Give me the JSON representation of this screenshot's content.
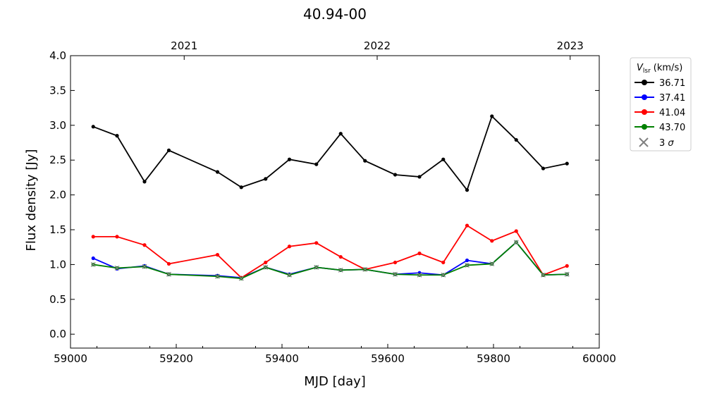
{
  "chart_data": {
    "type": "line",
    "title": "40.94-00",
    "xlabel": "MJD [day]",
    "ylabel": "Flux density [Jy]",
    "xlim": [
      59000,
      60000
    ],
    "ylim": [
      -0.2,
      4.0
    ],
    "xticks": [
      "59000",
      "59200",
      "59400",
      "59600",
      "59800",
      "60000"
    ],
    "yticks": [
      "0.0",
      "0.5",
      "1.0",
      "1.5",
      "2.0",
      "2.5",
      "3.0",
      "3.5",
      "4.0"
    ],
    "top_axis_years": [
      {
        "label": "2021",
        "mjd": 59215
      },
      {
        "label": "2022",
        "mjd": 59580
      },
      {
        "label": "2023",
        "mjd": 59945
      }
    ],
    "legend_title_main": "V",
    "legend_title_sub": "lsr",
    "legend_title_unit": "(km/s)",
    "legend_placement": "outside-top-right",
    "sigma_label_num": "3",
    "sigma_label_sym": "σ",
    "x": [
      59043,
      59088,
      59140,
      59186,
      59278,
      59323,
      59369,
      59414,
      59465,
      59511,
      59557,
      59614,
      59660,
      59705,
      59750,
      59797,
      59843,
      59894,
      59939
    ],
    "series": [
      {
        "name": "36.71",
        "color": "#000000",
        "values": [
          2.98,
          2.85,
          2.19,
          2.64,
          2.33,
          2.11,
          2.23,
          2.51,
          2.44,
          2.88,
          2.49,
          2.29,
          2.26,
          2.51,
          2.07,
          3.13,
          2.79,
          2.38,
          2.45
        ]
      },
      {
        "name": "37.41",
        "color": "#0000ff",
        "values": [
          1.09,
          0.94,
          0.98,
          0.86,
          0.84,
          0.81,
          0.96,
          0.86,
          0.96,
          0.92,
          0.93,
          0.86,
          0.88,
          0.85,
          1.06,
          1.01,
          1.32,
          0.85,
          0.86
        ]
      },
      {
        "name": "41.04",
        "color": "#ff0000",
        "values": [
          1.4,
          1.4,
          1.28,
          1.01,
          1.14,
          0.81,
          1.03,
          1.26,
          1.31,
          1.11,
          0.93,
          1.03,
          1.16,
          1.03,
          1.56,
          1.34,
          1.48,
          0.85,
          0.98
        ]
      },
      {
        "name": "43.70",
        "color": "#008000",
        "values": [
          1.0,
          0.95,
          0.97,
          0.86,
          0.83,
          0.8,
          0.96,
          0.85,
          0.96,
          0.92,
          0.93,
          0.86,
          0.85,
          0.85,
          0.99,
          1.01,
          1.32,
          0.85,
          0.86
        ]
      }
    ],
    "sigma_marks": {
      "color": "#808080",
      "x": [
        59043,
        59088,
        59140,
        59186,
        59278,
        59323,
        59369,
        59414,
        59465,
        59511,
        59557,
        59614,
        59660,
        59705,
        59750,
        59797,
        59843,
        59894,
        59939
      ],
      "values": [
        1.0,
        0.95,
        0.97,
        0.86,
        0.83,
        0.8,
        0.96,
        0.85,
        0.96,
        0.92,
        0.93,
        0.86,
        0.85,
        0.85,
        0.99,
        1.01,
        1.32,
        0.85,
        0.86
      ]
    },
    "grid": false
  }
}
